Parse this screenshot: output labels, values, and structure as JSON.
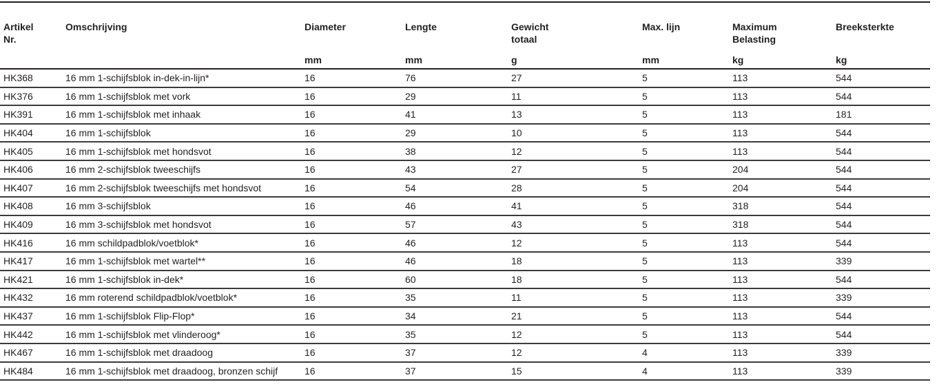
{
  "table": {
    "headers": [
      "Artikel Nr.",
      "Omschrijving",
      "Diameter",
      "Lengte",
      "Gewicht totaal",
      "Max. lijn",
      "Maximum Belasting",
      "Breeksterkte"
    ],
    "units": [
      "",
      "",
      "mm",
      "mm",
      "g",
      "mm",
      "kg",
      "kg"
    ],
    "rows": [
      [
        "HK368",
        "16 mm 1-schijfsblok in-dek-in-lijn*",
        "16",
        "76",
        "27",
        "5",
        "113",
        "544"
      ],
      [
        "HK376",
        "16 mm 1-schijfsblok met vork",
        "16",
        "29",
        "11",
        "5",
        "113",
        "544"
      ],
      [
        "HK391",
        "16 mm 1-schijfsblok met inhaak",
        "16",
        "41",
        "13",
        "5",
        "113",
        "181"
      ],
      [
        "HK404",
        "16 mm 1-schijfsblok",
        "16",
        "29",
        "10",
        "5",
        "113",
        "544"
      ],
      [
        "HK405",
        "16 mm 1-schijfsblok met hondsvot",
        "16",
        "38",
        "12",
        "5",
        "113",
        "544"
      ],
      [
        "HK406",
        "16 mm 2-schijfsblok tweeschijfs",
        "16",
        "43",
        "27",
        "5",
        "204",
        "544"
      ],
      [
        "HK407",
        "16 mm 2-schijfsblok tweeschijfs met hondsvot",
        "16",
        "54",
        "28",
        "5",
        "204",
        "544"
      ],
      [
        "HK408",
        "16 mm 3-schijfsblok",
        "16",
        "46",
        "41",
        "5",
        "318",
        "544"
      ],
      [
        "HK409",
        "16 mm 3-schijfsblok met hondsvot",
        "16",
        "57",
        "43",
        "5",
        "318",
        "544"
      ],
      [
        "HK416",
        "16 mm schildpadblok/voetblok*",
        "16",
        "46",
        "12",
        "5",
        "113",
        "544"
      ],
      [
        "HK417",
        "16 mm 1-schijfsblok met wartel**",
        "16",
        "46",
        "18",
        "5",
        "113",
        "339"
      ],
      [
        "HK421",
        "16 mm 1-schijfsblok in-dek*",
        "16",
        "60",
        "18",
        "5",
        "113",
        "544"
      ],
      [
        "HK432",
        "16 mm roterend schildpadblok/voetblok*",
        "16",
        "35",
        "11",
        "5",
        "113",
        "339"
      ],
      [
        "HK437",
        "16 mm 1-schijfsblok Flip-Flop*",
        "16",
        "34",
        "21",
        "5",
        "113",
        "544"
      ],
      [
        "HK442",
        "16 mm 1-schijfsblok met vlinderoog*",
        "16",
        "35",
        "12",
        "5",
        "113",
        "544"
      ],
      [
        "HK467",
        "16 mm 1-schijfsblok met draadoog",
        "16",
        "37",
        "12",
        "4",
        "113",
        "339"
      ],
      [
        "HK484",
        "16 mm 1-schijfsblok met draadoog, bronzen schijf",
        "16",
        "37",
        "15",
        "4",
        "113",
        "339"
      ]
    ]
  }
}
